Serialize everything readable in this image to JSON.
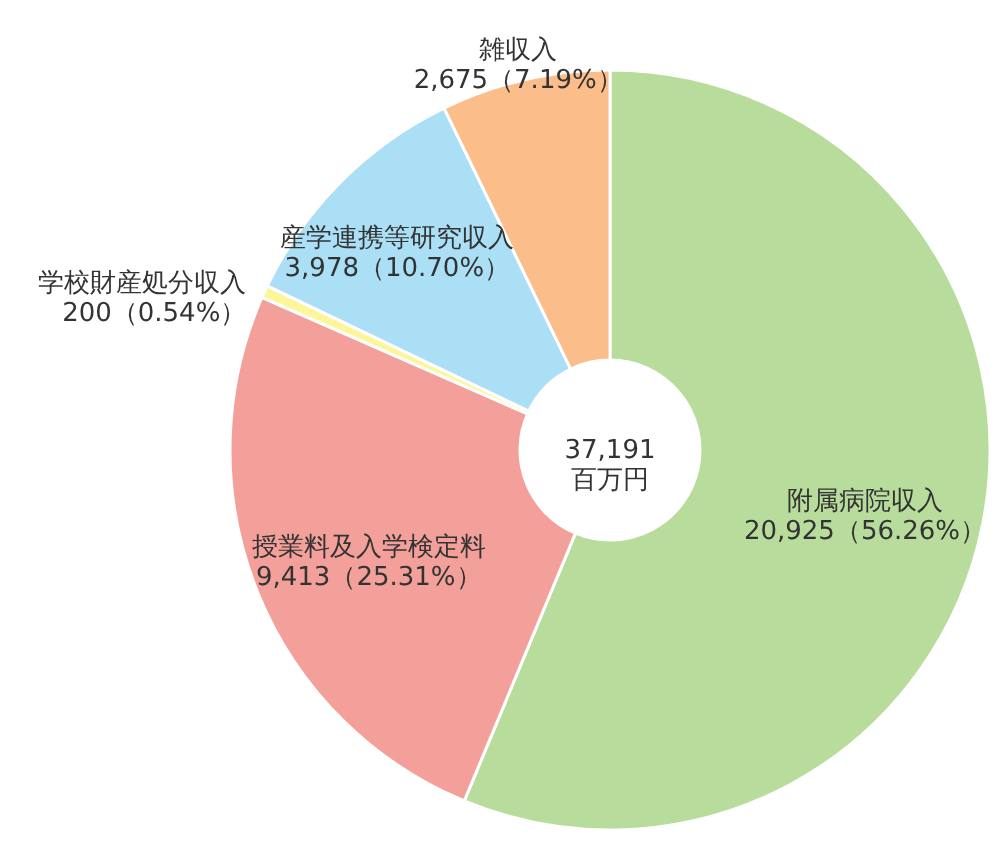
{
  "chart_data": {
    "type": "donut",
    "categories": [
      "附属病院収入",
      "授業料及入学検定料",
      "学校財産処分収入",
      "産学連携等研究収入",
      "雑収入"
    ],
    "values": [
      20925,
      9413,
      200,
      3978,
      2675
    ],
    "colors": [
      "#b8dc9c",
      "#f4a09a",
      "#fdf59a",
      "#aadff5",
      "#fbbd89"
    ],
    "value_labels": [
      "20,925（56.26%）",
      "9,413（25.31%）",
      "200（0.54%）",
      "3,978（10.70%）",
      "2,675（7.19%）"
    ],
    "annotations": [
      "37,191\n百万円"
    ]
  }
}
